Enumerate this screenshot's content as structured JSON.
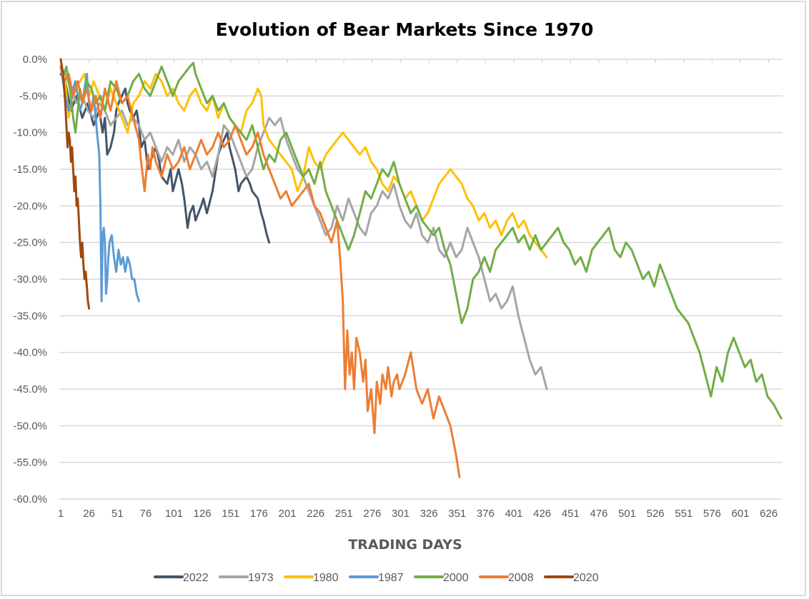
{
  "chart_data": {
    "type": "line",
    "title": "Evolution of Bear Markets Since 1970",
    "xlabel": "TRADING DAYS",
    "ylabel": "",
    "xlim": [
      1,
      637
    ],
    "ylim": [
      -60,
      0
    ],
    "grid": true,
    "legend_position": "bottom",
    "x_ticks": [
      "1",
      "26",
      "51",
      "76",
      "101",
      "126",
      "151",
      "176",
      "201",
      "226",
      "251",
      "276",
      "301",
      "326",
      "351",
      "376",
      "401",
      "426",
      "451",
      "476",
      "501",
      "526",
      "551",
      "576",
      "601",
      "626"
    ],
    "y_ticks": [
      "0.0%",
      "-5.0%",
      "-10.0%",
      "-15.0%",
      "-20.0%",
      "-25.0%",
      "-30.0%",
      "-35.0%",
      "-40.0%",
      "-45.0%",
      "-50.0%",
      "-55.0%",
      "-60.0%"
    ],
    "series": [
      {
        "name": "2022",
        "color": "#44546A",
        "x": [
          1,
          5,
          10,
          15,
          20,
          25,
          30,
          35,
          38,
          40,
          42,
          45,
          48,
          50,
          52,
          55,
          58,
          60,
          62,
          65,
          68,
          70,
          72,
          75,
          78,
          80,
          85,
          88,
          90,
          95,
          98,
          100,
          105,
          108,
          110,
          113,
          115,
          118,
          120,
          125,
          127,
          130,
          135,
          138,
          140,
          145,
          148,
          150,
          155,
          158,
          160,
          165,
          168,
          170,
          175,
          178,
          180,
          183,
          185
        ],
        "y": [
          -2,
          -3,
          -7,
          -5,
          -8,
          -6,
          -9,
          -7,
          -10,
          -8,
          -13,
          -12,
          -10,
          -7,
          -6,
          -5,
          -4,
          -6,
          -7,
          -8,
          -7,
          -9,
          -12,
          -11,
          -15,
          -14,
          -12,
          -14,
          -16,
          -17,
          -15,
          -18,
          -15,
          -17,
          -19,
          -23,
          -21,
          -20,
          -22,
          -20,
          -19,
          -21,
          -18,
          -15,
          -13,
          -11,
          -10,
          -12,
          -15,
          -18,
          -17,
          -16,
          -17,
          -18,
          -19,
          -21,
          -22,
          -24,
          -25
        ]
      },
      {
        "name": "1973",
        "color": "#A5A5A5",
        "x": [
          1,
          5,
          10,
          15,
          20,
          25,
          30,
          35,
          40,
          45,
          50,
          55,
          60,
          65,
          70,
          75,
          80,
          85,
          90,
          95,
          100,
          105,
          110,
          115,
          120,
          125,
          130,
          135,
          140,
          145,
          150,
          155,
          160,
          165,
          170,
          175,
          180,
          185,
          190,
          195,
          200,
          205,
          210,
          215,
          220,
          225,
          230,
          235,
          240,
          245,
          250,
          255,
          260,
          265,
          270,
          275,
          280,
          285,
          290,
          295,
          300,
          305,
          310,
          315,
          320,
          325,
          330,
          335,
          340,
          345,
          350,
          355,
          360,
          365,
          370,
          375,
          380,
          385,
          390,
          395,
          400,
          405,
          410,
          415,
          420,
          425,
          430
        ],
        "y": [
          -1,
          -2,
          -4,
          -6,
          -5,
          -7,
          -8,
          -6,
          -7,
          -9,
          -8,
          -7,
          -9,
          -8,
          -9,
          -11,
          -10,
          -12,
          -14,
          -12,
          -13,
          -11,
          -14,
          -12,
          -13,
          -15,
          -14,
          -16,
          -13,
          -9,
          -10,
          -12,
          -14,
          -16,
          -15,
          -12,
          -10,
          -8,
          -9,
          -8,
          -11,
          -13,
          -15,
          -16,
          -18,
          -20,
          -22,
          -24,
          -23,
          -20,
          -22,
          -19,
          -21,
          -23,
          -24,
          -21,
          -20,
          -18,
          -19,
          -17,
          -20,
          -22,
          -23,
          -21,
          -24,
          -25,
          -23,
          -26,
          -27,
          -25,
          -27,
          -26,
          -23,
          -25,
          -27,
          -30,
          -33,
          -32,
          -34,
          -33,
          -31,
          -35,
          -38,
          -41,
          -43,
          -42,
          -45
        ]
      },
      {
        "name": "1980",
        "color": "#FFC000",
        "x": [
          1,
          5,
          8,
          10,
          14,
          18,
          22,
          26,
          30,
          35,
          40,
          45,
          50,
          55,
          60,
          65,
          70,
          75,
          80,
          85,
          90,
          95,
          100,
          105,
          110,
          115,
          120,
          125,
          130,
          135,
          140,
          145,
          150,
          155,
          160,
          165,
          170,
          175,
          178,
          180,
          185,
          190,
          195,
          200,
          205,
          210,
          215,
          220,
          225,
          230,
          235,
          240,
          245,
          250,
          255,
          260,
          265,
          270,
          275,
          280,
          285,
          290,
          295,
          300,
          305,
          310,
          315,
          320,
          325,
          330,
          335,
          340,
          345,
          350,
          355,
          360,
          365,
          370,
          375,
          380,
          385,
          390,
          395,
          400,
          405,
          410,
          415,
          420,
          425,
          430
        ],
        "y": [
          -1,
          -3,
          -8,
          -6,
          -4,
          -3,
          -2,
          -5,
          -3,
          -5,
          -7,
          -4,
          -6,
          -8,
          -10,
          -6,
          -5,
          -3,
          -4,
          -2,
          -3,
          -5,
          -4,
          -6,
          -7,
          -5,
          -4,
          -6,
          -7,
          -5,
          -8,
          -6,
          -8,
          -9,
          -10,
          -7,
          -6,
          -4,
          -5,
          -9,
          -11,
          -12,
          -13,
          -14,
          -15,
          -18,
          -16,
          -12,
          -14,
          -15,
          -13,
          -12,
          -11,
          -10,
          -11,
          -12,
          -13,
          -12,
          -14,
          -15,
          -17,
          -18,
          -16,
          -17,
          -19,
          -18,
          -20,
          -22,
          -21,
          -19,
          -17,
          -16,
          -15,
          -16,
          -17,
          -19,
          -20,
          -22,
          -21,
          -23,
          -22,
          -24,
          -22,
          -21,
          -23,
          -22,
          -24,
          -25,
          -26,
          -27
        ]
      },
      {
        "name": "1987",
        "color": "#5B9BD5",
        "x": [
          1,
          3,
          5,
          8,
          10,
          12,
          14,
          16,
          18,
          20,
          22,
          24,
          26,
          28,
          30,
          32,
          33,
          35,
          36,
          37,
          38,
          39,
          40,
          41,
          42,
          43,
          44,
          46,
          48,
          50,
          52,
          54,
          56,
          58,
          60,
          62,
          64,
          66,
          68,
          70
        ],
        "y": [
          -1,
          -3,
          -5,
          -7,
          -6,
          -4,
          -3,
          -5,
          -7,
          -6,
          -4,
          -2,
          -6,
          -7,
          -5,
          -8,
          -10,
          -13,
          -20,
          -33,
          -24,
          -23,
          -25,
          -32,
          -30,
          -27,
          -25,
          -24,
          -27,
          -29,
          -26,
          -28,
          -27,
          -29,
          -27,
          -28,
          -30,
          -30,
          -32,
          -33
        ]
      },
      {
        "name": "2000",
        "color": "#70AD47",
        "x": [
          1,
          4,
          6,
          8,
          10,
          12,
          14,
          16,
          18,
          20,
          24,
          28,
          32,
          36,
          40,
          45,
          50,
          55,
          60,
          65,
          70,
          75,
          80,
          85,
          90,
          95,
          100,
          105,
          110,
          115,
          118,
          120,
          125,
          130,
          135,
          140,
          145,
          150,
          155,
          160,
          165,
          170,
          175,
          180,
          185,
          190,
          195,
          200,
          205,
          210,
          215,
          220,
          225,
          230,
          235,
          240,
          245,
          250,
          255,
          260,
          265,
          270,
          275,
          280,
          285,
          290,
          295,
          300,
          305,
          310,
          315,
          320,
          325,
          330,
          335,
          340,
          345,
          350,
          355,
          360,
          365,
          370,
          375,
          380,
          385,
          390,
          395,
          400,
          405,
          410,
          415,
          420,
          425,
          430,
          435,
          440,
          445,
          450,
          455,
          460,
          465,
          470,
          475,
          480,
          485,
          490,
          495,
          500,
          505,
          510,
          515,
          520,
          525,
          530,
          535,
          540,
          545,
          550,
          555,
          560,
          565,
          570,
          575,
          580,
          585,
          590,
          595,
          600,
          605,
          610,
          615,
          620,
          625,
          630,
          637
        ],
        "y": [
          -1,
          -2,
          -1,
          -3,
          -5,
          -8,
          -10,
          -7,
          -4,
          -6,
          -3,
          -4,
          -6,
          -5,
          -7,
          -3,
          -4,
          -6,
          -5,
          -3,
          -2,
          -4,
          -5,
          -3,
          -1,
          -3,
          -5,
          -3,
          -2,
          -1,
          -0.5,
          -2,
          -4,
          -6,
          -5,
          -7,
          -6,
          -8,
          -9,
          -10,
          -11,
          -9,
          -12,
          -15,
          -13,
          -14,
          -11,
          -10,
          -12,
          -14,
          -16,
          -15,
          -17,
          -14,
          -18,
          -20,
          -22,
          -24,
          -26,
          -24,
          -21,
          -18,
          -19,
          -17,
          -15,
          -16,
          -14,
          -17,
          -19,
          -21,
          -20,
          -22,
          -23,
          -24,
          -23,
          -26,
          -28,
          -32,
          -36,
          -34,
          -30,
          -29,
          -27,
          -29,
          -26,
          -25,
          -24,
          -23,
          -25,
          -24,
          -26,
          -24,
          -26,
          -25,
          -24,
          -23,
          -25,
          -26,
          -28,
          -27,
          -29,
          -26,
          -25,
          -24,
          -23,
          -26,
          -27,
          -25,
          -26,
          -28,
          -30,
          -29,
          -31,
          -28,
          -30,
          -32,
          -34,
          -35,
          -36,
          -38,
          -40,
          -43,
          -46,
          -42,
          -44,
          -40,
          -38,
          -40,
          -42,
          -41,
          -44,
          -43,
          -46,
          -47,
          -49
        ]
      },
      {
        "name": "2008",
        "color": "#ED7D31",
        "x": [
          1,
          4,
          8,
          12,
          16,
          20,
          24,
          28,
          32,
          36,
          40,
          45,
          50,
          55,
          60,
          65,
          70,
          72,
          75,
          78,
          80,
          82,
          85,
          90,
          95,
          100,
          105,
          110,
          115,
          120,
          125,
          130,
          135,
          140,
          145,
          150,
          155,
          160,
          165,
          170,
          175,
          180,
          185,
          190,
          195,
          200,
          205,
          210,
          215,
          220,
          225,
          230,
          235,
          240,
          245,
          248,
          250,
          252,
          254,
          256,
          258,
          260,
          262,
          265,
          268,
          270,
          272,
          275,
          278,
          280,
          283,
          285,
          288,
          290,
          293,
          295,
          298,
          300,
          305,
          310,
          315,
          320,
          325,
          330,
          335,
          340,
          345,
          350,
          353
        ],
        "y": [
          -1,
          -3,
          -2,
          -5,
          -3,
          -6,
          -4,
          -7,
          -5,
          -8,
          -4,
          -7,
          -3,
          -6,
          -5,
          -8,
          -11,
          -14,
          -18,
          -13,
          -15,
          -12,
          -14,
          -16,
          -13,
          -15,
          -14,
          -12,
          -15,
          -13,
          -11,
          -13,
          -12,
          -10,
          -12,
          -11,
          -9,
          -11,
          -13,
          -12,
          -10,
          -13,
          -15,
          -17,
          -19,
          -18,
          -20,
          -19,
          -18,
          -17,
          -20,
          -21,
          -23,
          -25,
          -22,
          -28,
          -33,
          -45,
          -37,
          -43,
          -40,
          -45,
          -38,
          -40,
          -44,
          -41,
          -48,
          -45,
          -51,
          -44,
          -47,
          -43,
          -45,
          -42,
          -46,
          -44,
          -43,
          -45,
          -43,
          -40,
          -45,
          -47,
          -45,
          -49,
          -46,
          -48,
          -50,
          -54,
          -57
        ]
      },
      {
        "name": "2020",
        "color": "#9E480E",
        "x": [
          1,
          2,
          3,
          4,
          5,
          6,
          7,
          8,
          9,
          10,
          11,
          12,
          13,
          14,
          15,
          16,
          17,
          18,
          19,
          20,
          21,
          22,
          23,
          24,
          25,
          26
        ],
        "y": [
          0,
          -1,
          -2,
          -4,
          -6,
          -9,
          -12,
          -10,
          -11,
          -14,
          -12,
          -15,
          -18,
          -16,
          -20,
          -19,
          -22,
          -25,
          -27,
          -25,
          -28,
          -30,
          -29,
          -31,
          -33,
          -34
        ]
      }
    ]
  }
}
